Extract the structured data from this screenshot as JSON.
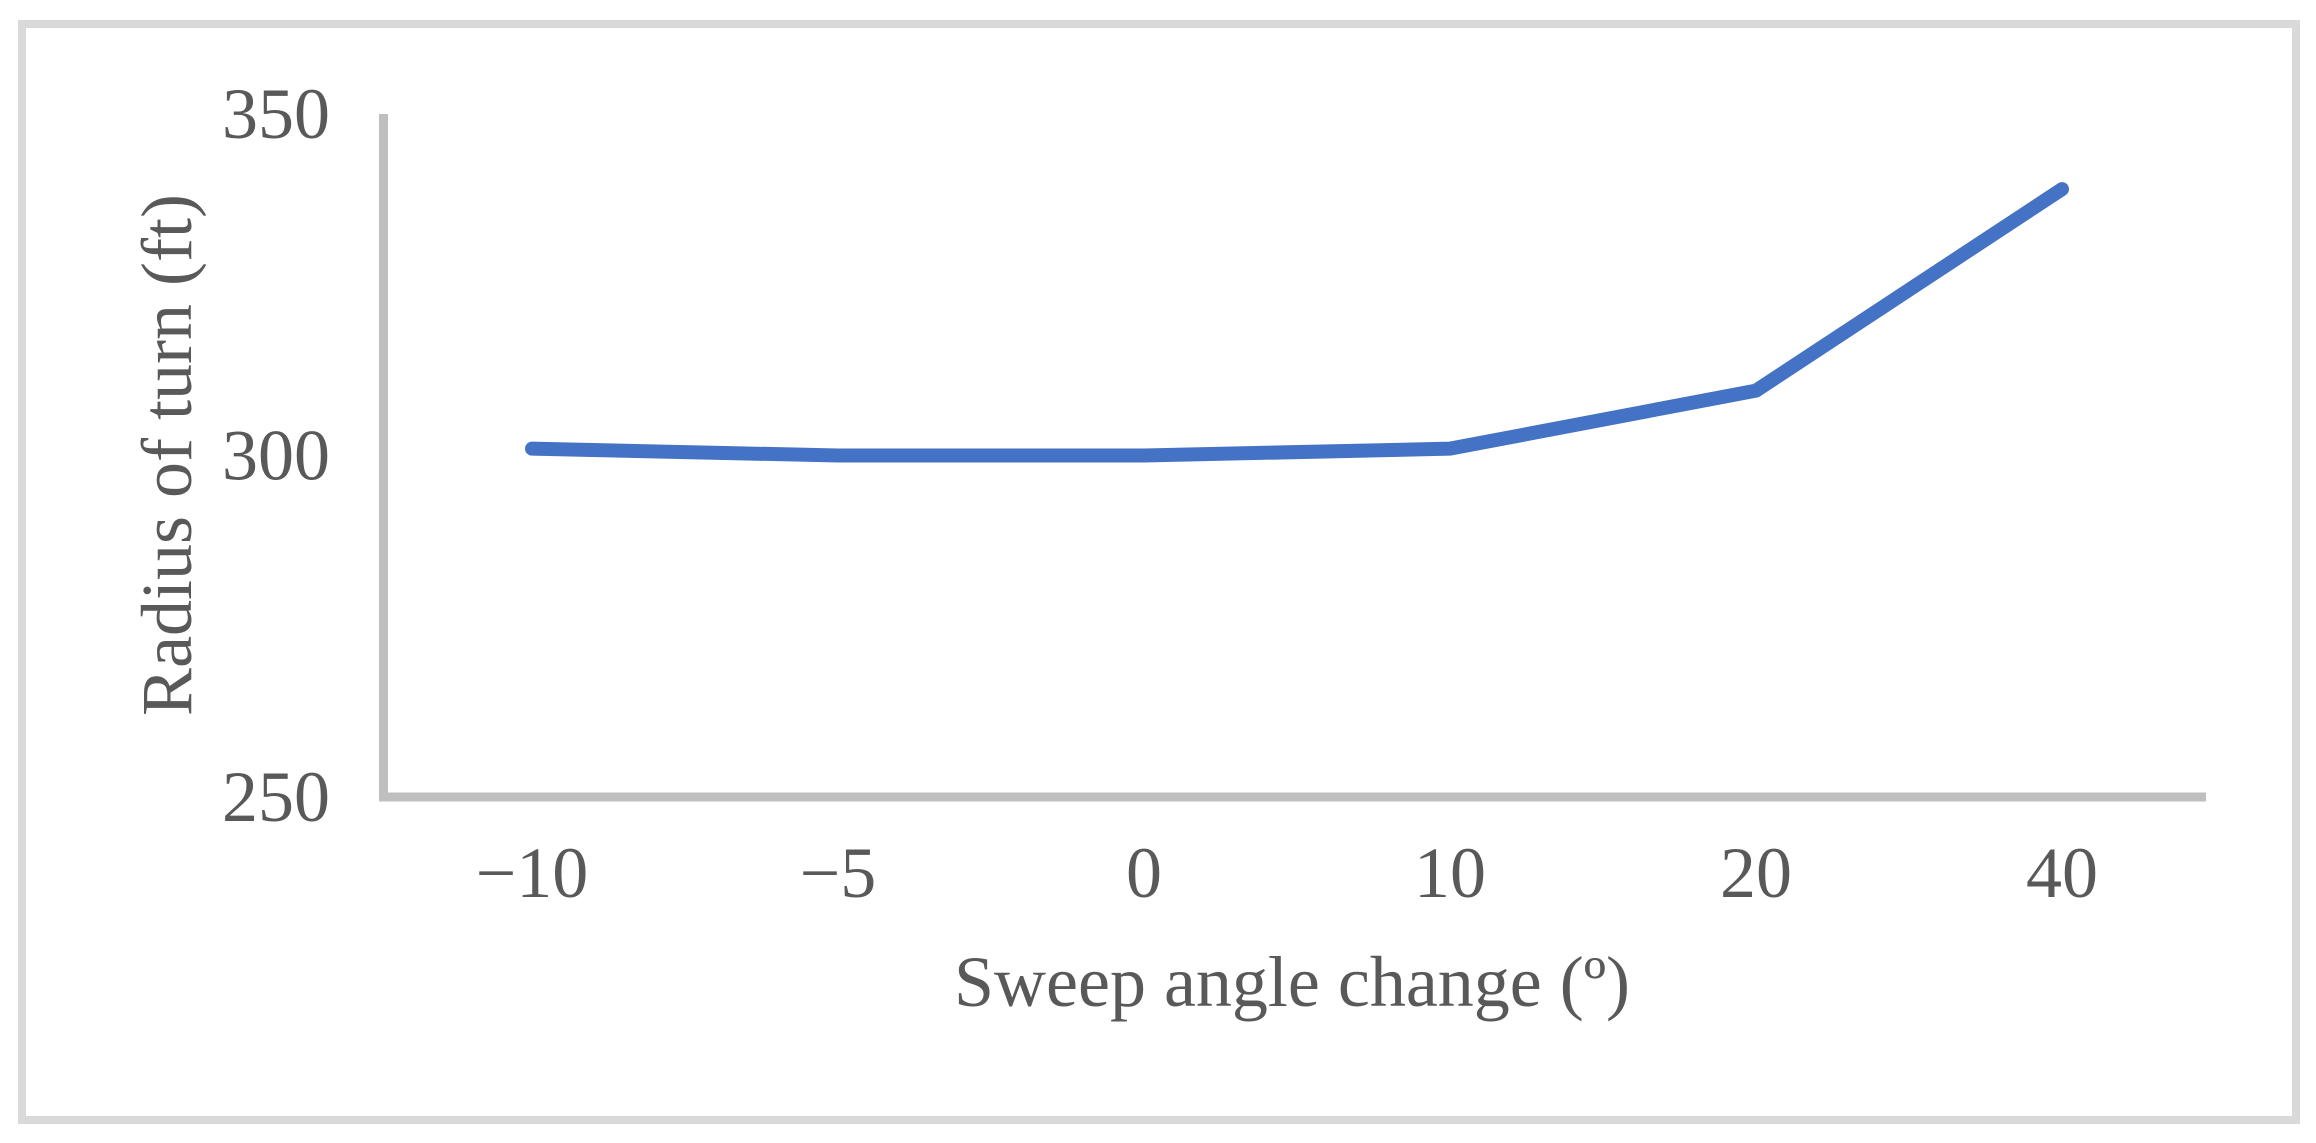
{
  "chart": {
    "y_axis_title": "Radius of turn (ft)",
    "x_axis_title": "Sweep angle change (º)"
  },
  "chart_data": {
    "type": "line",
    "title": "",
    "categories": [
      "−10",
      "−5",
      "0",
      "10",
      "20",
      "40"
    ],
    "category_values": [
      -10,
      -5,
      0,
      10,
      20,
      40
    ],
    "values": [
      301,
      300,
      300,
      301,
      309.5,
      339
    ],
    "xlabel": "Sweep angle change (º)",
    "ylabel": "Radius of turn (ft)",
    "x_axis_type": "categorical",
    "y_ticks": [
      250,
      300,
      350
    ],
    "y_tick_labels": [
      "250",
      "300",
      "350"
    ],
    "ylim": [
      250,
      350
    ],
    "grid": false,
    "legend": false,
    "colors": {
      "series": "#4472C4",
      "axis": "#BFBFBF",
      "text": "#595959",
      "frame_border": "#D9D9D9",
      "background": "#FFFFFF"
    }
  }
}
